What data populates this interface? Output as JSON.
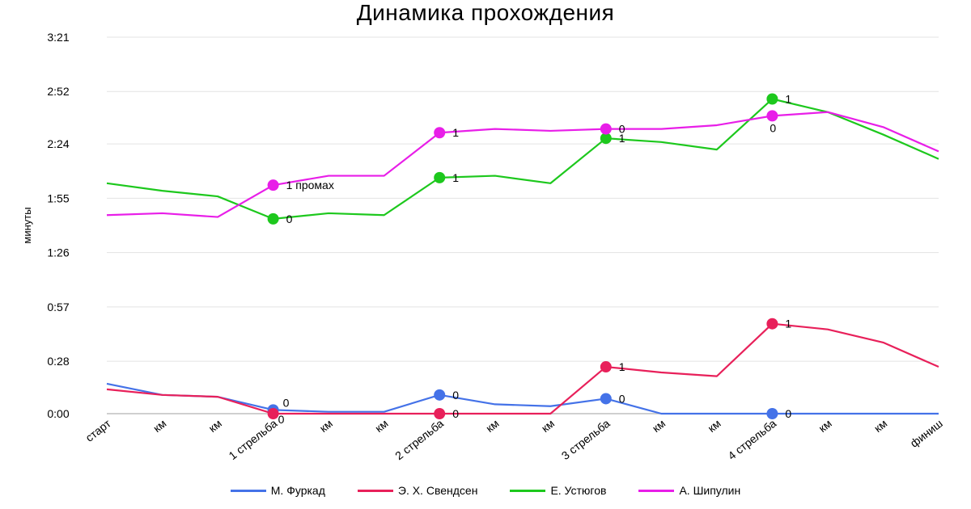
{
  "chart_data": {
    "type": "line",
    "title": "Динамика прохождения",
    "xlabel": "",
    "ylabel": "минуты",
    "categories": [
      "старт",
      "км",
      "км",
      "1 стрельба",
      "км",
      "км",
      "2 стрельба",
      "км",
      "км",
      "3 стрельба",
      "км",
      "км",
      "4 стрельба",
      "км",
      "км",
      "финиш"
    ],
    "y_ticks": [
      "0:00",
      "0:28",
      "0:57",
      "1:26",
      "1:55",
      "2:24",
      "2:52",
      "3:21"
    ],
    "y_tick_seconds": [
      0,
      28,
      57,
      86,
      115,
      144,
      172,
      201
    ],
    "ylim_seconds": [
      0,
      201
    ],
    "grid": true,
    "legend_position": "bottom",
    "series": [
      {
        "name": "М. Фуркад",
        "color": "#4472e8",
        "values_seconds": [
          16,
          10,
          9,
          2,
          1,
          1,
          10,
          5,
          4,
          8,
          0,
          0,
          0,
          0,
          0,
          0
        ],
        "markers": [
          {
            "index": 3,
            "label": "0"
          },
          {
            "index": 6,
            "label": "0"
          },
          {
            "index": 9,
            "label": "0"
          },
          {
            "index": 12,
            "label": "0"
          }
        ]
      },
      {
        "name": "Э. Х. Свендсен",
        "color": "#e8205a",
        "values_seconds": [
          13,
          10,
          9,
          0,
          0,
          0,
          0,
          0,
          0,
          25,
          22,
          20,
          48,
          45,
          38,
          25
        ],
        "markers": [
          {
            "index": 3,
            "label": "0"
          },
          {
            "index": 6,
            "label": "0"
          },
          {
            "index": 9,
            "label": "1"
          },
          {
            "index": 12,
            "label": "1"
          }
        ]
      },
      {
        "name": "Е. Устюгов",
        "color": "#1dc81d",
        "values_seconds": [
          123,
          119,
          116,
          104,
          107,
          106,
          126,
          127,
          123,
          147,
          145,
          141,
          168,
          161,
          149,
          136
        ],
        "markers": [
          {
            "index": 3,
            "label": "0"
          },
          {
            "index": 6,
            "label": "1"
          },
          {
            "index": 9,
            "label": "1"
          },
          {
            "index": 12,
            "label": "1"
          }
        ]
      },
      {
        "name": "А. Шипулин",
        "color": "#e81ee8",
        "values_seconds": [
          106,
          107,
          105,
          122,
          127,
          127,
          150,
          152,
          151,
          152,
          152,
          154,
          159,
          161,
          153,
          140
        ],
        "markers": [
          {
            "index": 3,
            "label": "1 промах"
          },
          {
            "index": 6,
            "label": "1"
          },
          {
            "index": 9,
            "label": "0"
          },
          {
            "index": 12,
            "label": "0"
          }
        ]
      }
    ]
  }
}
